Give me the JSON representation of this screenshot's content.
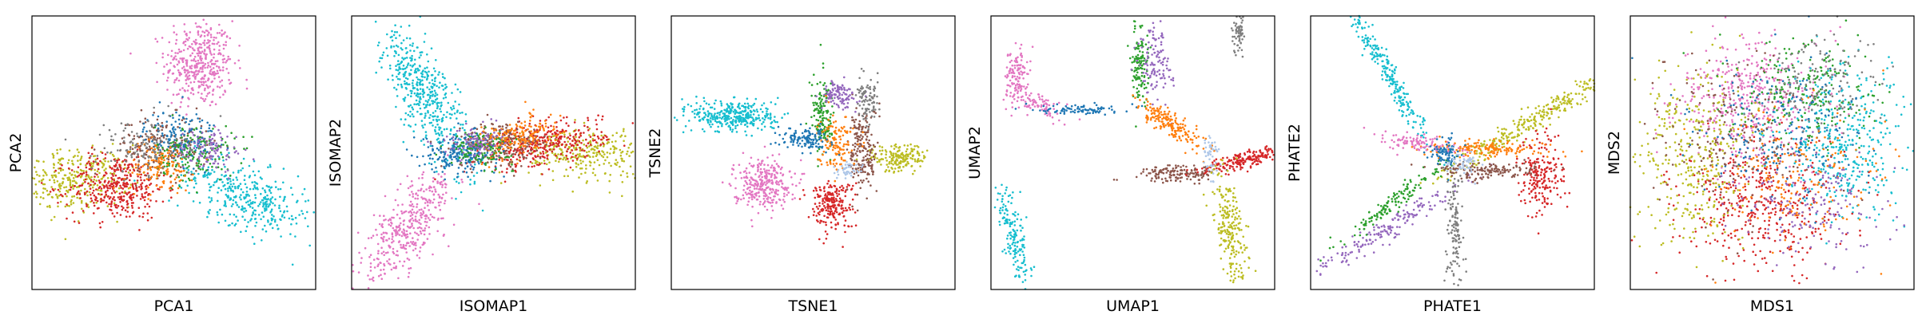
{
  "palette": {
    "blue": "#1f77b4",
    "orange": "#ff7f0e",
    "green": "#2ca02c",
    "red": "#d62728",
    "purple": "#9467bd",
    "brown": "#8c564b",
    "pink": "#e377c2",
    "gray": "#7f7f7f",
    "olive": "#bcbd22",
    "cyan": "#17becf",
    "lightblue": "#aec7e8"
  },
  "chart_data": [
    {
      "type": "scatter",
      "title": "",
      "xlabel": "PCA1",
      "ylabel": "PCA2",
      "xlim": [
        -10,
        10
      ],
      "ylim": [
        -10,
        10
      ],
      "ticks": false,
      "grid": false,
      "series": [
        {
          "color": "pink",
          "blobs": [
            {
              "x": 1.8,
              "y": 6.5,
              "sx": 1.2,
              "sy": 1.6,
              "angle": 0,
              "n": 420
            }
          ]
        },
        {
          "color": "olive",
          "blobs": [
            {
              "x": -7.0,
              "y": -2.0,
              "sx": 2.0,
              "sy": 1.1,
              "angle": 5,
              "n": 320
            }
          ]
        },
        {
          "color": "red",
          "blobs": [
            {
              "x": -4.0,
              "y": -2.5,
              "sx": 1.7,
              "sy": 1.2,
              "angle": 0,
              "n": 380
            }
          ]
        },
        {
          "color": "cyan",
          "blobs": [
            {
              "x": 5.2,
              "y": -3.2,
              "sx": 2.4,
              "sy": 1.1,
              "angle": -25,
              "n": 380
            }
          ]
        },
        {
          "color": "brown",
          "blobs": [
            {
              "x": -0.8,
              "y": 0.5,
              "sx": 1.6,
              "sy": 1.1,
              "angle": 0,
              "n": 220
            }
          ]
        },
        {
          "color": "blue",
          "blobs": [
            {
              "x": 0.5,
              "y": 1.2,
              "sx": 1.3,
              "sy": 1.0,
              "angle": 0,
              "n": 160
            }
          ]
        },
        {
          "color": "green",
          "blobs": [
            {
              "x": 1.5,
              "y": 0.0,
              "sx": 1.4,
              "sy": 1.0,
              "angle": 0,
              "n": 160
            }
          ]
        },
        {
          "color": "orange",
          "blobs": [
            {
              "x": -1.0,
              "y": -1.0,
              "sx": 1.2,
              "sy": 0.9,
              "angle": 0,
              "n": 130
            }
          ]
        },
        {
          "color": "purple",
          "blobs": [
            {
              "x": 2.5,
              "y": 0.2,
              "sx": 1.2,
              "sy": 0.8,
              "angle": 0,
              "n": 110
            }
          ]
        },
        {
          "color": "gray",
          "blobs": [
            {
              "x": -2.5,
              "y": 0.5,
              "sx": 1.6,
              "sy": 1.0,
              "angle": 0,
              "n": 110
            }
          ]
        }
      ]
    },
    {
      "type": "scatter",
      "title": "",
      "xlabel": "ISOMAP1",
      "ylabel": "ISOMAP2",
      "xlim": [
        -10,
        10
      ],
      "ylim": [
        -10,
        10
      ],
      "ticks": false,
      "grid": false,
      "series": [
        {
          "color": "cyan",
          "blobs": [
            {
              "x": -5.0,
              "y": 4.5,
              "sx": 3.2,
              "sy": 0.9,
              "angle": -65,
              "n": 480
            }
          ]
        },
        {
          "color": "pink",
          "blobs": [
            {
              "x": -6.0,
              "y": -5.5,
              "sx": 2.6,
              "sy": 0.9,
              "angle": 55,
              "n": 400
            }
          ]
        },
        {
          "color": "olive",
          "blobs": [
            {
              "x": 6.5,
              "y": 0.0,
              "sx": 2.5,
              "sy": 0.9,
              "angle": 0,
              "n": 320
            }
          ]
        },
        {
          "color": "red",
          "blobs": [
            {
              "x": 3.5,
              "y": 0.6,
              "sx": 2.2,
              "sy": 0.8,
              "angle": 10,
              "n": 360
            }
          ]
        },
        {
          "color": "brown",
          "blobs": [
            {
              "x": 0.5,
              "y": 0.6,
              "sx": 1.6,
              "sy": 0.8,
              "angle": 0,
              "n": 220
            }
          ]
        },
        {
          "color": "blue",
          "blobs": [
            {
              "x": -2.3,
              "y": 0.0,
              "sx": 1.3,
              "sy": 0.7,
              "angle": 0,
              "n": 220
            }
          ]
        },
        {
          "color": "green",
          "blobs": [
            {
              "x": -0.8,
              "y": 0.3,
              "sx": 1.1,
              "sy": 0.6,
              "angle": 0,
              "n": 130
            }
          ]
        },
        {
          "color": "orange",
          "blobs": [
            {
              "x": 1.8,
              "y": 1.2,
              "sx": 1.5,
              "sy": 0.7,
              "angle": 15,
              "n": 160
            }
          ]
        },
        {
          "color": "purple",
          "blobs": [
            {
              "x": -1.5,
              "y": 0.8,
              "sx": 1.0,
              "sy": 0.6,
              "angle": 0,
              "n": 90
            }
          ]
        }
      ]
    },
    {
      "type": "scatter",
      "title": "",
      "xlabel": "TSNE1",
      "ylabel": "TSNE2",
      "xlim": [
        -10,
        10
      ],
      "ylim": [
        -10,
        10
      ],
      "ticks": false,
      "grid": false,
      "series": [
        {
          "color": "cyan",
          "blobs": [
            {
              "x": -5.5,
              "y": 2.7,
              "sx": 1.5,
              "sy": 0.6,
              "angle": 0,
              "n": 360
            }
          ]
        },
        {
          "color": "pink",
          "blobs": [
            {
              "x": -3.6,
              "y": -2.2,
              "sx": 1.0,
              "sy": 0.9,
              "angle": 0,
              "n": 300
            }
          ]
        },
        {
          "color": "red",
          "blobs": [
            {
              "x": 1.3,
              "y": -3.8,
              "sx": 0.8,
              "sy": 0.9,
              "angle": 0,
              "n": 220
            }
          ]
        },
        {
          "color": "olive",
          "blobs": [
            {
              "x": 6.0,
              "y": -0.4,
              "sx": 1.0,
              "sy": 0.5,
              "angle": 0,
              "n": 180
            }
          ]
        },
        {
          "color": "brown",
          "blobs": [
            {
              "x": 3.5,
              "y": 0.2,
              "sx": 0.5,
              "sy": 1.6,
              "angle": 0,
              "n": 200
            }
          ]
        },
        {
          "color": "green",
          "blobs": [
            {
              "x": 0.7,
              "y": 2.6,
              "sx": 0.4,
              "sy": 1.4,
              "angle": 0,
              "n": 150
            }
          ]
        },
        {
          "color": "purple",
          "blobs": [
            {
              "x": 1.8,
              "y": 4.2,
              "sx": 0.6,
              "sy": 0.5,
              "angle": 0,
              "n": 110
            }
          ]
        },
        {
          "color": "orange",
          "blobs": [
            {
              "x": 1.6,
              "y": 0.8,
              "sx": 0.6,
              "sy": 1.0,
              "angle": 0,
              "n": 130
            }
          ]
        },
        {
          "color": "blue",
          "blobs": [
            {
              "x": -0.6,
              "y": 1.0,
              "sx": 0.9,
              "sy": 0.4,
              "angle": 0,
              "n": 130
            }
          ]
        },
        {
          "color": "gray",
          "blobs": [
            {
              "x": 3.9,
              "y": 3.6,
              "sx": 0.4,
              "sy": 0.8,
              "angle": 0,
              "n": 90
            }
          ]
        },
        {
          "color": "lightblue",
          "blobs": [
            {
              "x": 2.5,
              "y": -1.3,
              "sx": 0.5,
              "sy": 0.3,
              "angle": 0,
              "n": 40
            }
          ]
        }
      ]
    },
    {
      "type": "scatter",
      "title": "",
      "xlabel": "UMAP1",
      "ylabel": "UMAP2",
      "xlim": [
        -10,
        10
      ],
      "ylim": [
        -10,
        10
      ],
      "ticks": false,
      "grid": false,
      "series": [
        {
          "color": "pink",
          "blobs": [
            {
              "x": -8.2,
              "y": 5.8,
              "sx": 0.4,
              "sy": 1.0,
              "angle": 0,
              "n": 120
            },
            {
              "x": -6.8,
              "y": 3.5,
              "sx": 1.0,
              "sy": 0.4,
              "angle": -20,
              "n": 90
            }
          ]
        },
        {
          "color": "blue",
          "blobs": [
            {
              "x": -3.7,
              "y": 3.2,
              "sx": 1.4,
              "sy": 0.2,
              "angle": 0,
              "n": 90
            }
          ]
        },
        {
          "color": "green",
          "blobs": [
            {
              "x": 0.5,
              "y": 6.5,
              "sx": 0.3,
              "sy": 1.4,
              "angle": 0,
              "n": 130
            }
          ]
        },
        {
          "color": "purple",
          "blobs": [
            {
              "x": 1.6,
              "y": 6.8,
              "sx": 0.6,
              "sy": 1.5,
              "angle": 0,
              "n": 120
            }
          ]
        },
        {
          "color": "gray",
          "blobs": [
            {
              "x": 7.5,
              "y": 8.8,
              "sx": 0.2,
              "sy": 0.8,
              "angle": 0,
              "n": 70
            }
          ]
        },
        {
          "color": "orange",
          "blobs": [
            {
              "x": 2.8,
              "y": 2.0,
              "sx": 1.6,
              "sy": 0.4,
              "angle": -35,
              "n": 180
            }
          ]
        },
        {
          "color": "brown",
          "blobs": [
            {
              "x": 3.2,
              "y": -1.5,
              "sx": 1.4,
              "sy": 0.3,
              "angle": 0,
              "n": 150
            }
          ]
        },
        {
          "color": "red",
          "blobs": [
            {
              "x": 8.0,
              "y": -0.5,
              "sx": 1.6,
              "sy": 0.3,
              "angle": 15,
              "n": 200
            }
          ]
        },
        {
          "color": "lightblue",
          "blobs": [
            {
              "x": 5.5,
              "y": -0.2,
              "sx": 0.3,
              "sy": 0.8,
              "angle": 0,
              "n": 50
            }
          ]
        },
        {
          "color": "olive",
          "blobs": [
            {
              "x": 6.8,
              "y": -5.5,
              "sx": 0.5,
              "sy": 2.0,
              "angle": 10,
              "n": 220
            }
          ]
        },
        {
          "color": "cyan",
          "blobs": [
            {
              "x": -8.3,
              "y": -6.5,
              "sx": 0.4,
              "sy": 2.0,
              "angle": 15,
              "n": 170
            }
          ]
        }
      ]
    },
    {
      "type": "scatter",
      "title": "",
      "xlabel": "PHATE1",
      "ylabel": "PHATE2",
      "xlim": [
        -10,
        10
      ],
      "ylim": [
        -10,
        10
      ],
      "ticks": false,
      "grid": false,
      "series": [
        {
          "color": "cyan",
          "blobs": [
            {
              "x": -4.6,
              "y": 5.8,
              "sx": 3.6,
              "sy": 0.3,
              "angle": -60,
              "n": 260
            }
          ]
        },
        {
          "color": "olive",
          "blobs": [
            {
              "x": 5.5,
              "y": 2.3,
              "sx": 3.6,
              "sy": 0.35,
              "angle": 32,
              "n": 300
            }
          ]
        },
        {
          "color": "red",
          "blobs": [
            {
              "x": 6.3,
              "y": -1.7,
              "sx": 0.8,
              "sy": 1.5,
              "angle": 0,
              "n": 200
            }
          ]
        },
        {
          "color": "purple",
          "blobs": [
            {
              "x": -5.0,
              "y": -5.8,
              "sx": 3.2,
              "sy": 0.35,
              "angle": 32,
              "n": 180
            }
          ]
        },
        {
          "color": "green",
          "blobs": [
            {
              "x": -4.0,
              "y": -3.5,
              "sx": 2.2,
              "sy": 0.3,
              "angle": 38,
              "n": 140
            }
          ]
        },
        {
          "color": "gray",
          "blobs": [
            {
              "x": 0.2,
              "y": -5.5,
              "sx": 0.3,
              "sy": 2.2,
              "angle": 0,
              "n": 130
            }
          ]
        },
        {
          "color": "brown",
          "blobs": [
            {
              "x": 2.5,
              "y": -1.3,
              "sx": 1.8,
              "sy": 0.3,
              "angle": 0,
              "n": 150
            }
          ]
        },
        {
          "color": "orange",
          "blobs": [
            {
              "x": 2.5,
              "y": 0.3,
              "sx": 2.2,
              "sy": 0.3,
              "angle": 0,
              "n": 160
            }
          ]
        },
        {
          "color": "pink",
          "blobs": [
            {
              "x": -2.3,
              "y": 0.7,
              "sx": 1.3,
              "sy": 0.3,
              "angle": -10,
              "n": 100
            }
          ]
        },
        {
          "color": "blue",
          "blobs": [
            {
              "x": -0.5,
              "y": 0.0,
              "sx": 0.5,
              "sy": 0.5,
              "angle": 0,
              "n": 80
            }
          ]
        },
        {
          "color": "lightblue",
          "blobs": [
            {
              "x": 0.8,
              "y": -0.8,
              "sx": 0.6,
              "sy": 0.4,
              "angle": 0,
              "n": 50
            }
          ]
        }
      ]
    },
    {
      "type": "scatter",
      "title": "",
      "xlabel": "MDS1",
      "ylabel": "MDS2",
      "xlim": [
        -10,
        10
      ],
      "ylim": [
        -10,
        10
      ],
      "ticks": false,
      "grid": false,
      "series": [
        {
          "color": "pink",
          "blobs": [
            {
              "x": -1.5,
              "y": 4.0,
              "sx": 2.6,
              "sy": 2.2,
              "angle": 0,
              "n": 420
            }
          ]
        },
        {
          "color": "cyan",
          "blobs": [
            {
              "x": 5.0,
              "y": 0.8,
              "sx": 2.4,
              "sy": 2.8,
              "angle": 0,
              "n": 400
            }
          ]
        },
        {
          "color": "red",
          "blobs": [
            {
              "x": -1.0,
              "y": -4.0,
              "sx": 2.8,
              "sy": 2.3,
              "angle": 0,
              "n": 420
            }
          ]
        },
        {
          "color": "olive",
          "blobs": [
            {
              "x": -5.5,
              "y": 0.0,
              "sx": 2.0,
              "sy": 3.2,
              "angle": 0,
              "n": 360
            }
          ]
        },
        {
          "color": "green",
          "blobs": [
            {
              "x": 2.5,
              "y": 4.5,
              "sx": 2.4,
              "sy": 2.0,
              "angle": 0,
              "n": 220
            }
          ]
        },
        {
          "color": "blue",
          "blobs": [
            {
              "x": 0.5,
              "y": 1.5,
              "sx": 3.0,
              "sy": 2.6,
              "angle": 0,
              "n": 220
            }
          ]
        },
        {
          "color": "orange",
          "blobs": [
            {
              "x": 1.5,
              "y": -2.0,
              "sx": 3.0,
              "sy": 2.6,
              "angle": 0,
              "n": 200
            }
          ]
        },
        {
          "color": "brown",
          "blobs": [
            {
              "x": -3.0,
              "y": 1.0,
              "sx": 3.0,
              "sy": 3.0,
              "angle": 0,
              "n": 180
            }
          ]
        },
        {
          "color": "purple",
          "blobs": [
            {
              "x": 3.0,
              "y": -4.0,
              "sx": 2.6,
              "sy": 2.2,
              "angle": 0,
              "n": 180
            }
          ]
        },
        {
          "color": "gray",
          "blobs": [
            {
              "x": 3.5,
              "y": 5.0,
              "sx": 2.2,
              "sy": 1.8,
              "angle": 0,
              "n": 150
            }
          ]
        }
      ]
    }
  ]
}
